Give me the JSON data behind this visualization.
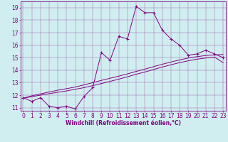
{
  "xlabel": "Windchill (Refroidissement éolien,°C)",
  "x_data": [
    0,
    1,
    2,
    3,
    4,
    5,
    6,
    7,
    8,
    9,
    10,
    11,
    12,
    13,
    14,
    15,
    16,
    17,
    18,
    19,
    20,
    21,
    22,
    23
  ],
  "y_line1": [
    11.8,
    11.5,
    11.8,
    11.1,
    11.0,
    11.1,
    10.9,
    11.9,
    12.6,
    15.4,
    14.8,
    16.7,
    16.5,
    19.1,
    18.6,
    18.6,
    17.2,
    16.5,
    16.0,
    15.2,
    15.3,
    15.6,
    15.3,
    15.0
  ],
  "y_line2": [
    11.75,
    11.95,
    12.1,
    12.25,
    12.4,
    12.52,
    12.65,
    12.82,
    13.0,
    13.18,
    13.35,
    13.52,
    13.7,
    13.9,
    14.08,
    14.28,
    14.47,
    14.65,
    14.82,
    14.97,
    15.08,
    15.17,
    15.22,
    15.25
  ],
  "y_line3": [
    11.75,
    11.88,
    12.0,
    12.12,
    12.23,
    12.34,
    12.47,
    12.6,
    12.76,
    12.93,
    13.1,
    13.28,
    13.47,
    13.67,
    13.85,
    14.05,
    14.25,
    14.43,
    14.6,
    14.75,
    14.88,
    14.97,
    15.05,
    14.6
  ],
  "color": "#800080",
  "bg_color": "#d0eef0",
  "xlim": [
    0,
    23
  ],
  "ylim": [
    10.75,
    19.5
  ],
  "xticks": [
    0,
    1,
    2,
    3,
    4,
    5,
    6,
    7,
    8,
    9,
    10,
    11,
    12,
    13,
    14,
    15,
    16,
    17,
    18,
    19,
    20,
    21,
    22,
    23
  ],
  "yticks": [
    11,
    12,
    13,
    14,
    15,
    16,
    17,
    18,
    19
  ],
  "xlabel_fontsize": 5.5,
  "tick_fontsize": 5.5
}
